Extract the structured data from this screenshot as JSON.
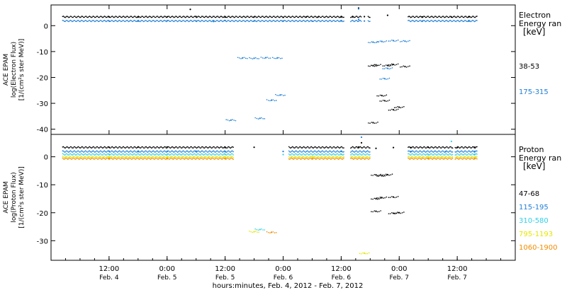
{
  "chart_data": [
    {
      "type": "scatter",
      "ylabel_lines": [
        "ACE EPAM",
        "log(Electron Flux)",
        "[1/(cm²s ster MeV)]"
      ],
      "ylim": [
        -42,
        8
      ],
      "yticks": [
        0,
        -10,
        -20,
        -30,
        -40
      ],
      "legend_title": [
        "Electron",
        "Energy ran",
        "[keV]"
      ],
      "series": [
        {
          "name": "38-53",
          "color": "#000000",
          "points": [
            [
              1.0,
              3.4
            ],
            [
              1.5,
              3.3
            ],
            [
              2.0,
              3.4
            ],
            [
              2.4,
              6.3
            ],
            [
              2.5,
              3.5
            ],
            [
              3.0,
              3.3
            ],
            [
              3.5,
              3.4
            ],
            [
              4.0,
              3.2
            ],
            [
              4.4,
              3.4
            ],
            [
              4.6,
              3.3
            ],
            [
              5.0,
              3.3
            ],
            [
              5.2,
              3.4
            ],
            [
              5.3,
              6.8
            ],
            [
              5.4,
              3.5
            ],
            [
              5.8,
              4.0
            ],
            [
              5.55,
              -15.5
            ],
            [
              5.6,
              -15.2
            ],
            [
              5.8,
              -15.4
            ],
            [
              5.9,
              -15.0
            ],
            [
              5.7,
              -27.0
            ],
            [
              5.75,
              -29.0
            ],
            [
              5.9,
              -32.5
            ],
            [
              6.0,
              -31.5
            ],
            [
              5.55,
              -37.5
            ],
            [
              6.1,
              -15.8
            ],
            [
              6.4,
              3.4
            ],
            [
              6.9,
              3.3
            ],
            [
              7.2,
              3.4
            ]
          ]
        },
        {
          "name": "175-315",
          "color": "#1f7fd6",
          "points": [
            [
              1.0,
              1.8
            ],
            [
              1.5,
              1.7
            ],
            [
              2.0,
              1.9
            ],
            [
              2.5,
              1.8
            ],
            [
              2.8,
              1.6
            ],
            [
              3.0,
              2.0
            ],
            [
              3.5,
              1.8
            ],
            [
              4.0,
              1.8
            ],
            [
              4.5,
              1.7
            ],
            [
              5.0,
              1.8
            ],
            [
              5.3,
              2.4
            ],
            [
              5.4,
              1.8
            ],
            [
              5.55,
              -6.4
            ],
            [
              5.7,
              -6.1
            ],
            [
              5.9,
              -5.8
            ],
            [
              6.1,
              -6.0
            ],
            [
              5.8,
              -16.5
            ],
            [
              5.75,
              -20.5
            ],
            [
              6.4,
              1.8
            ],
            [
              7.2,
              1.7
            ],
            [
              3.3,
              -12.5
            ],
            [
              3.5,
              -12.6
            ],
            [
              3.7,
              -12.4
            ],
            [
              3.9,
              -12.5
            ],
            [
              3.95,
              -26.8
            ],
            [
              3.8,
              -28.8
            ],
            [
              3.6,
              -35.8
            ],
            [
              3.1,
              -36.5
            ],
            [
              5.3,
              6.5
            ]
          ]
        }
      ],
      "gaps": [
        {
          "from": 5.05,
          "to": 5.15
        },
        {
          "from": 5.35,
          "to": 5.45
        },
        {
          "from": 5.5,
          "to": 6.15
        }
      ]
    },
    {
      "type": "scatter",
      "ylabel_lines": [
        "ACE EPAM",
        "log(Proton Flux)",
        "[1/(cm²s ster MeV)]"
      ],
      "ylim": [
        -37,
        8
      ],
      "yticks": [
        0,
        -10,
        -20,
        -30
      ],
      "legend_title": [
        "Proton",
        "Energy ran",
        "[keV]"
      ],
      "series": [
        {
          "name": "47-68",
          "color": "#000000",
          "points": [
            [
              1.0,
              3.4
            ],
            [
              1.5,
              3.5
            ],
            [
              2.0,
              3.5
            ],
            [
              3.0,
              3.3
            ],
            [
              3.5,
              3.4
            ],
            [
              5.3,
              3.5
            ],
            [
              5.35,
              5.0
            ],
            [
              5.6,
              -6.5
            ],
            [
              5.7,
              -6.8
            ],
            [
              5.8,
              -6.4
            ],
            [
              5.6,
              -15.0
            ],
            [
              5.7,
              -14.6
            ],
            [
              5.9,
              -14.4
            ],
            [
              5.6,
              -19.5
            ],
            [
              5.9,
              -20.2
            ],
            [
              6.0,
              -20.0
            ],
            [
              5.6,
              3.0
            ],
            [
              5.9,
              3.3
            ],
            [
              6.2,
              3.3
            ],
            [
              6.5,
              3.4
            ],
            [
              7.0,
              3.3
            ],
            [
              7.3,
              3.4
            ]
          ]
        },
        {
          "name": "115-195",
          "color": "#1f7fd6",
          "points": [
            [
              1.0,
              2.0
            ],
            [
              1.5,
              1.8
            ],
            [
              2.0,
              1.9
            ],
            [
              2.5,
              2.0
            ],
            [
              3.0,
              1.8
            ],
            [
              4.0,
              1.9
            ],
            [
              5.0,
              1.9
            ],
            [
              6.2,
              1.9
            ],
            [
              6.8,
              1.8
            ],
            [
              7.3,
              1.9
            ],
            [
              5.35,
              7.0
            ]
          ]
        },
        {
          "name": "310-580",
          "color": "#30d0e8",
          "points": [
            [
              1.0,
              0.9
            ],
            [
              2.0,
              0.8
            ],
            [
              3.0,
              0.9
            ],
            [
              3.6,
              -26.0
            ],
            [
              4.0,
              0.8
            ],
            [
              5.0,
              0.9
            ],
            [
              6.5,
              0.8
            ],
            [
              6.9,
              5.5
            ],
            [
              7.3,
              0.9
            ]
          ]
        },
        {
          "name": "795-1193",
          "color": "#e6e600",
          "points": [
            [
              1.0,
              0.0
            ],
            [
              2.0,
              -0.1
            ],
            [
              3.0,
              0.0
            ],
            [
              3.5,
              -26.8
            ],
            [
              4.5,
              0.0
            ],
            [
              6.5,
              0.0
            ],
            [
              7.3,
              -0.1
            ],
            [
              5.4,
              -34.5
            ]
          ]
        },
        {
          "name": "1060-1900",
          "color": "#f08c00",
          "points": [
            [
              1.0,
              -0.6
            ],
            [
              2.0,
              -0.7
            ],
            [
              3.0,
              -0.6
            ],
            [
              3.8,
              -27.0
            ],
            [
              4.5,
              -0.7
            ],
            [
              6.5,
              -0.6
            ],
            [
              7.3,
              -0.7
            ]
          ]
        }
      ],
      "gaps": [
        {
          "from": 3.15,
          "to": 4.1
        },
        {
          "from": 5.05,
          "to": 5.15
        },
        {
          "from": 5.5,
          "to": 6.15
        },
        {
          "from": 6.92,
          "to": 6.95
        }
      ]
    }
  ],
  "time_axis": {
    "x_range": [
      0,
      8.0
    ],
    "tick_labels": [
      {
        "time": "12:00",
        "date": "Feb. 4"
      },
      {
        "time": "0:00",
        "date": "Feb. 5"
      },
      {
        "time": "12:00",
        "date": "Feb. 5"
      },
      {
        "time": "0:00",
        "date": "Feb. 6"
      },
      {
        "time": "12:00",
        "date": "Feb. 6"
      },
      {
        "time": "0:00",
        "date": "Feb. 7"
      },
      {
        "time": "12:00",
        "date": "Feb. 7"
      }
    ],
    "xlabel": "hours:minutes, Feb.  4, 2012 - Feb.  7, 2012"
  }
}
